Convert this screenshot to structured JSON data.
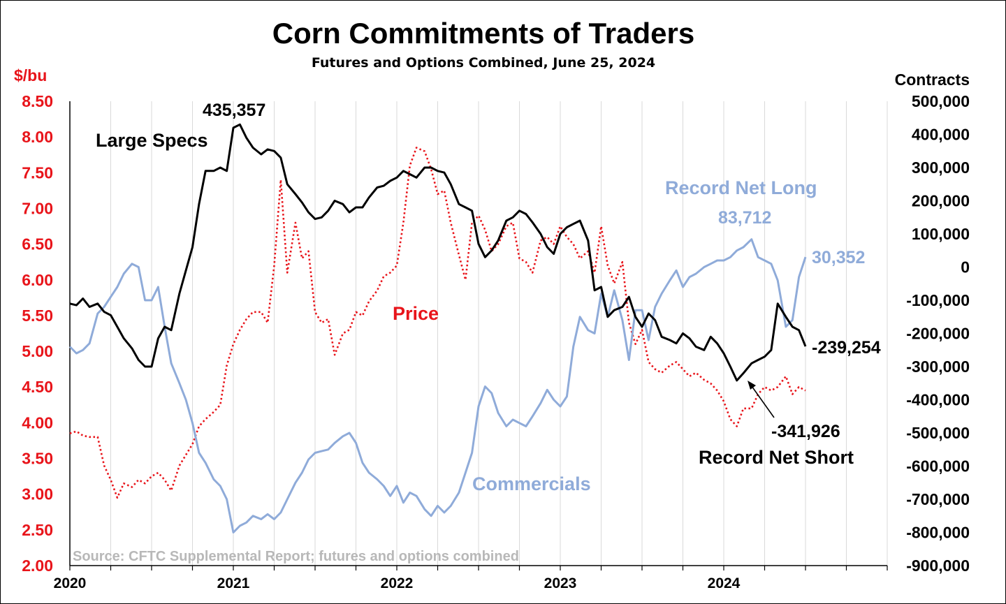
{
  "chart_data": {
    "type": "line",
    "title": "Corn Commitments of Traders",
    "subtitle": "Futures and Options Combined, June 25, 2024",
    "y_left_label": "$/bu",
    "y_right_label": "Contracts",
    "y_left_ticks": [
      "8.50",
      "8.00",
      "7.50",
      "7.00",
      "6.50",
      "6.00",
      "5.50",
      "5.00",
      "4.50",
      "4.00",
      "3.50",
      "3.00",
      "2.50",
      "2.00"
    ],
    "y_right_ticks": [
      "500,000",
      "400,000",
      "300,000",
      "200,000",
      "100,000",
      "0",
      "-100,000",
      "-200,000",
      "-300,000",
      "-400,000",
      "-500,000",
      "-600,000",
      "-700,000",
      "-800,000",
      "-900,000"
    ],
    "x_ticks": [
      "2020",
      "2021",
      "2022",
      "2023",
      "2024"
    ],
    "y_left_range": [
      2.0,
      8.5
    ],
    "y_right_range": [
      -900000,
      500000
    ],
    "x_range": [
      2020.0,
      2025.0
    ],
    "source": "Source: CFTC Supplemental Report; futures and options combined",
    "colors": {
      "large_specs": "#000000",
      "commercials": "#8fabd9",
      "price": "#e8141a"
    },
    "annotations": {
      "large_specs_label": "Large Specs",
      "commercials_label": "Commercials",
      "price_label": "Price",
      "record_net_long_label": "Record Net Long",
      "record_net_long_value": "83,712",
      "latest_commercials_value": "30,352",
      "large_specs_peak_value": "435,357",
      "latest_large_specs_value": "-239,254",
      "record_net_short_value": "-341,926",
      "record_net_short_label": "Record Net Short"
    },
    "series": [
      {
        "name": "Large Specs",
        "axis": "right",
        "style": "solid",
        "color": "#000000",
        "x": [
          2020.0,
          2020.04,
          2020.08,
          2020.12,
          2020.17,
          2020.21,
          2020.25,
          2020.29,
          2020.33,
          2020.38,
          2020.42,
          2020.46,
          2020.5,
          2020.54,
          2020.58,
          2020.62,
          2020.67,
          2020.71,
          2020.75,
          2020.79,
          2020.83,
          2020.88,
          2020.92,
          2020.96,
          2021.0,
          2021.04,
          2021.08,
          2021.12,
          2021.17,
          2021.21,
          2021.25,
          2021.29,
          2021.33,
          2021.38,
          2021.42,
          2021.46,
          2021.5,
          2021.54,
          2021.58,
          2021.62,
          2021.67,
          2021.71,
          2021.75,
          2021.79,
          2021.83,
          2021.88,
          2021.92,
          2021.96,
          2022.0,
          2022.04,
          2022.08,
          2022.12,
          2022.17,
          2022.21,
          2022.25,
          2022.29,
          2022.33,
          2022.38,
          2022.42,
          2022.46,
          2022.5,
          2022.54,
          2022.58,
          2022.62,
          2022.67,
          2022.71,
          2022.75,
          2022.79,
          2022.83,
          2022.88,
          2022.92,
          2022.96,
          2023.0,
          2023.04,
          2023.08,
          2023.12,
          2023.17,
          2023.21,
          2023.25,
          2023.29,
          2023.33,
          2023.38,
          2023.42,
          2023.46,
          2023.5,
          2023.54,
          2023.58,
          2023.62,
          2023.67,
          2023.71,
          2023.75,
          2023.79,
          2023.83,
          2023.88,
          2023.92,
          2023.96,
          2024.0,
          2024.04,
          2024.08,
          2024.12,
          2024.17,
          2024.21,
          2024.25,
          2024.29,
          2024.33,
          2024.38,
          2024.42,
          2024.46,
          2024.5
        ],
        "values": [
          -110000,
          -115000,
          -95000,
          -120000,
          -110000,
          -135000,
          -145000,
          -180000,
          -215000,
          -245000,
          -280000,
          -300000,
          -300000,
          -215000,
          -180000,
          -190000,
          -80000,
          -10000,
          60000,
          190000,
          290000,
          290000,
          300000,
          290000,
          420000,
          430000,
          390000,
          360000,
          340000,
          355000,
          350000,
          330000,
          250000,
          220000,
          195000,
          165000,
          145000,
          150000,
          170000,
          200000,
          190000,
          165000,
          180000,
          180000,
          210000,
          240000,
          245000,
          260000,
          270000,
          290000,
          280000,
          270000,
          300000,
          300000,
          290000,
          285000,
          250000,
          190000,
          180000,
          170000,
          70000,
          30000,
          50000,
          80000,
          140000,
          150000,
          170000,
          160000,
          135000,
          100000,
          60000,
          40000,
          100000,
          120000,
          130000,
          140000,
          80000,
          -70000,
          -60000,
          -150000,
          -130000,
          -120000,
          -90000,
          -150000,
          -180000,
          -140000,
          -160000,
          -210000,
          -220000,
          -230000,
          -200000,
          -215000,
          -240000,
          -250000,
          -210000,
          -230000,
          -260000,
          -300000,
          -341926,
          -320000,
          -290000,
          -280000,
          -270000,
          -250000,
          -110000,
          -150000,
          -180000,
          -190000,
          -239254
        ]
      },
      {
        "name": "Commercials",
        "axis": "right",
        "style": "solid",
        "color": "#8fabd9",
        "x": [
          2020.0,
          2020.04,
          2020.08,
          2020.12,
          2020.17,
          2020.21,
          2020.25,
          2020.29,
          2020.33,
          2020.38,
          2020.42,
          2020.46,
          2020.5,
          2020.54,
          2020.58,
          2020.62,
          2020.67,
          2020.71,
          2020.75,
          2020.79,
          2020.83,
          2020.88,
          2020.92,
          2020.96,
          2021.0,
          2021.04,
          2021.08,
          2021.12,
          2021.17,
          2021.21,
          2021.25,
          2021.29,
          2021.33,
          2021.38,
          2021.42,
          2021.46,
          2021.5,
          2021.54,
          2021.58,
          2021.62,
          2021.67,
          2021.71,
          2021.75,
          2021.79,
          2021.83,
          2021.88,
          2021.92,
          2021.96,
          2022.0,
          2022.04,
          2022.08,
          2022.12,
          2022.17,
          2022.21,
          2022.25,
          2022.29,
          2022.33,
          2022.38,
          2022.42,
          2022.46,
          2022.5,
          2022.54,
          2022.58,
          2022.62,
          2022.67,
          2022.71,
          2022.75,
          2022.79,
          2022.83,
          2022.88,
          2022.92,
          2022.96,
          2023.0,
          2023.04,
          2023.08,
          2023.12,
          2023.17,
          2023.21,
          2023.25,
          2023.29,
          2023.33,
          2023.38,
          2023.42,
          2023.46,
          2023.5,
          2023.54,
          2023.58,
          2023.62,
          2023.67,
          2023.71,
          2023.75,
          2023.79,
          2023.83,
          2023.88,
          2023.92,
          2023.96,
          2024.0,
          2024.04,
          2024.08,
          2024.12,
          2024.17,
          2024.21,
          2024.25,
          2024.29,
          2024.33,
          2024.38,
          2024.42,
          2024.46,
          2024.5
        ],
        "values": [
          -240000,
          -260000,
          -250000,
          -230000,
          -140000,
          -120000,
          -90000,
          -60000,
          -20000,
          10000,
          0,
          -100000,
          -100000,
          -60000,
          -180000,
          -290000,
          -350000,
          -400000,
          -470000,
          -560000,
          -590000,
          -640000,
          -660000,
          -700000,
          -800000,
          -780000,
          -770000,
          -750000,
          -760000,
          -745000,
          -760000,
          -740000,
          -700000,
          -650000,
          -620000,
          -580000,
          -560000,
          -555000,
          -550000,
          -530000,
          -510000,
          -500000,
          -530000,
          -590000,
          -620000,
          -640000,
          -660000,
          -690000,
          -660000,
          -710000,
          -680000,
          -690000,
          -730000,
          -750000,
          -720000,
          -740000,
          -720000,
          -680000,
          -620000,
          -560000,
          -420000,
          -360000,
          -380000,
          -440000,
          -480000,
          -460000,
          -470000,
          -480000,
          -450000,
          -410000,
          -370000,
          -400000,
          -420000,
          -390000,
          -240000,
          -150000,
          -190000,
          -200000,
          -80000,
          -150000,
          -70000,
          -160000,
          -280000,
          -130000,
          -130000,
          -220000,
          -120000,
          -80000,
          -40000,
          -10000,
          -60000,
          -30000,
          -20000,
          0,
          10000,
          20000,
          20000,
          30000,
          50000,
          60000,
          83712,
          30000,
          20000,
          10000,
          -40000,
          -180000,
          -160000,
          -30000,
          30352
        ]
      },
      {
        "name": "Price",
        "axis": "left",
        "style": "dotted",
        "color": "#e8141a",
        "x": [
          2020.0,
          2020.04,
          2020.08,
          2020.12,
          2020.17,
          2020.21,
          2020.25,
          2020.29,
          2020.33,
          2020.38,
          2020.42,
          2020.46,
          2020.5,
          2020.54,
          2020.58,
          2020.62,
          2020.67,
          2020.71,
          2020.75,
          2020.79,
          2020.83,
          2020.88,
          2020.92,
          2020.96,
          2021.0,
          2021.04,
          2021.08,
          2021.12,
          2021.17,
          2021.21,
          2021.25,
          2021.29,
          2021.33,
          2021.38,
          2021.42,
          2021.46,
          2021.5,
          2021.54,
          2021.58,
          2021.62,
          2021.67,
          2021.71,
          2021.75,
          2021.79,
          2021.83,
          2021.88,
          2021.92,
          2021.96,
          2022.0,
          2022.04,
          2022.08,
          2022.12,
          2022.17,
          2022.21,
          2022.25,
          2022.29,
          2022.33,
          2022.38,
          2022.42,
          2022.46,
          2022.5,
          2022.54,
          2022.58,
          2022.62,
          2022.67,
          2022.71,
          2022.75,
          2022.79,
          2022.83,
          2022.88,
          2022.92,
          2022.96,
          2023.0,
          2023.04,
          2023.08,
          2023.12,
          2023.17,
          2023.21,
          2023.25,
          2023.29,
          2023.33,
          2023.38,
          2023.42,
          2023.46,
          2023.5,
          2023.54,
          2023.58,
          2023.62,
          2023.67,
          2023.71,
          2023.75,
          2023.79,
          2023.83,
          2023.88,
          2023.92,
          2023.96,
          2024.0,
          2024.04,
          2024.08,
          2024.12,
          2024.17,
          2024.21,
          2024.25,
          2024.29,
          2024.33,
          2024.38,
          2024.42,
          2024.46,
          2024.5
        ],
        "values": [
          3.85,
          3.88,
          3.82,
          3.8,
          3.8,
          3.4,
          3.2,
          2.95,
          3.15,
          3.1,
          3.2,
          3.15,
          3.25,
          3.3,
          3.2,
          3.05,
          3.4,
          3.55,
          3.7,
          3.95,
          4.05,
          4.15,
          4.25,
          4.8,
          5.1,
          5.3,
          5.45,
          5.55,
          5.55,
          5.4,
          6.2,
          7.4,
          6.1,
          6.8,
          6.3,
          6.4,
          5.55,
          5.4,
          5.45,
          4.95,
          5.25,
          5.3,
          5.55,
          5.5,
          5.7,
          5.85,
          6.05,
          6.1,
          6.2,
          6.8,
          7.6,
          7.85,
          7.8,
          7.55,
          7.2,
          7.25,
          6.8,
          6.35,
          6.0,
          6.8,
          6.9,
          6.7,
          6.4,
          6.5,
          6.75,
          6.8,
          6.3,
          6.25,
          6.1,
          6.55,
          6.6,
          6.5,
          6.75,
          6.6,
          6.5,
          6.3,
          6.4,
          6.1,
          6.75,
          6.2,
          5.95,
          6.25,
          5.4,
          5.1,
          5.3,
          4.85,
          4.75,
          4.7,
          4.8,
          4.85,
          4.75,
          4.65,
          4.7,
          4.6,
          4.55,
          4.45,
          4.3,
          4.05,
          3.95,
          4.2,
          4.2,
          4.4,
          4.5,
          4.45,
          4.5,
          4.65,
          4.4,
          4.5,
          4.45
        ]
      }
    ]
  }
}
